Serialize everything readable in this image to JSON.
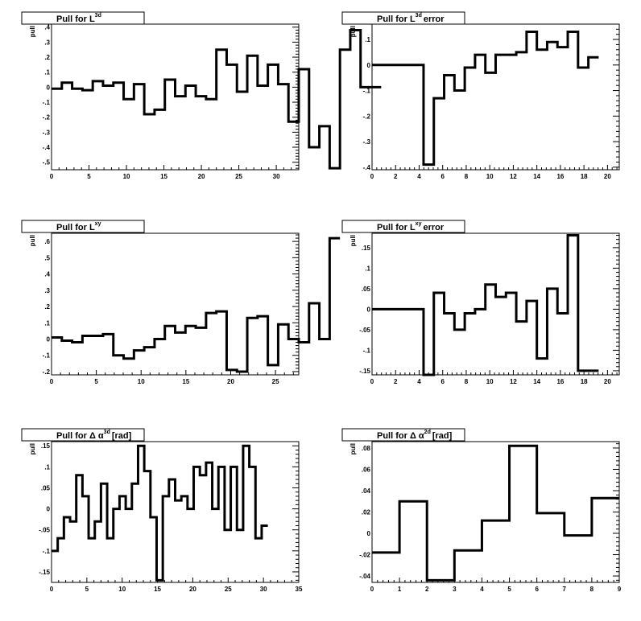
{
  "chart_data": [
    {
      "type": "histogram",
      "title": "Pull for L",
      "title_sup": "3d",
      "title_suffix": "",
      "ylabel": "pull",
      "bin_start": 0,
      "bin_width": 1.375,
      "xlim": [
        0,
        33
      ],
      "ylim": [
        -0.55,
        0.42
      ],
      "xticks": [
        0,
        5,
        10,
        15,
        20,
        25,
        30
      ],
      "yticks": [
        -0.5,
        -0.4,
        -0.3,
        -0.2,
        -0.1,
        0,
        0.1,
        0.2,
        0.3,
        0.4
      ],
      "values": [
        -0.01,
        0.03,
        -0.01,
        -0.02,
        0.04,
        0.01,
        0.03,
        -0.08,
        0.02,
        -0.18,
        -0.15,
        0.05,
        -0.06,
        0.01,
        -0.06,
        -0.08,
        0.25,
        0.15,
        -0.03,
        0.21,
        0.01,
        0.15,
        0.02,
        -0.23,
        0.12,
        -0.4,
        -0.26,
        -0.54,
        0.25,
        0.38,
        0.0,
        0.0
      ]
    },
    {
      "type": "histogram",
      "title": "Pull for L",
      "title_sup": "3d",
      "title_suffix": "error",
      "ylabel": "pull",
      "bin_start": 0,
      "bin_width": 0.875,
      "xlim": [
        0,
        21
      ],
      "ylim": [
        -0.41,
        0.16
      ],
      "xticks": [
        0,
        2,
        4,
        6,
        8,
        10,
        12,
        14,
        16,
        18,
        20
      ],
      "yticks": [
        -0.4,
        -0.3,
        -0.2,
        -0.1,
        0,
        0.1
      ],
      "values": [
        0,
        0,
        0,
        0,
        0,
        -0.39,
        -0.13,
        -0.04,
        -0.1,
        -0.01,
        0.04,
        -0.03,
        0.04,
        0.04,
        0.05,
        0.13,
        0.06,
        0.09,
        0.07,
        0.13,
        -0.01,
        0.03
      ]
    },
    {
      "type": "histogram",
      "title": "Pull for L",
      "title_sup": "xy",
      "title_suffix": "",
      "ylabel": "pull",
      "bin_start": 0,
      "bin_width": 1.15,
      "xlim": [
        0,
        27.6
      ],
      "ylim": [
        -0.22,
        0.65
      ],
      "xticks": [
        0,
        5,
        10,
        15,
        20,
        25
      ],
      "yticks": [
        -0.2,
        -0.1,
        0,
        0.1,
        0.2,
        0.3,
        0.4,
        0.5,
        0.6
      ],
      "values": [
        0.01,
        -0.01,
        -0.02,
        0.02,
        0.02,
        0.03,
        -0.1,
        -0.12,
        -0.07,
        -0.05,
        0.0,
        0.08,
        0.04,
        0.08,
        0.07,
        0.16,
        0.17,
        -0.19,
        -0.2,
        0.13,
        0.14,
        -0.16,
        0.09,
        0.0,
        -0.02,
        0.22,
        0.0,
        0.62
      ]
    },
    {
      "type": "histogram",
      "title": "Pull for L",
      "title_sup": "xy",
      "title_suffix": "error",
      "ylabel": "pull",
      "bin_start": 0,
      "bin_width": 0.875,
      "xlim": [
        0,
        21
      ],
      "ylim": [
        -0.16,
        0.185
      ],
      "xticks": [
        0,
        2,
        4,
        6,
        8,
        10,
        12,
        14,
        16,
        18,
        20
      ],
      "yticks": [
        -0.15,
        -0.1,
        -0.05,
        0,
        0.05,
        0.1,
        0.15
      ],
      "values": [
        0,
        0,
        0,
        0,
        0,
        -0.16,
        0.04,
        -0.01,
        -0.05,
        -0.01,
        0.0,
        0.06,
        0.03,
        0.04,
        -0.03,
        0.02,
        -0.12,
        0.05,
        -0.01,
        0.18,
        -0.15,
        -0.15
      ]
    },
    {
      "type": "histogram",
      "title": "Pull for Δ α",
      "title_sup": "3d",
      "title_suffix": "[rad]",
      "ylabel": "pull",
      "bin_start": 0,
      "bin_width": 0.875,
      "xlim": [
        0,
        35
      ],
      "ylim": [
        -0.175,
        0.16
      ],
      "xticks": [
        0,
        5,
        10,
        15,
        20,
        25,
        30,
        35
      ],
      "yticks": [
        -0.15,
        -0.1,
        -0.05,
        0,
        0.05,
        0.1,
        0.15
      ],
      "values": [
        -0.1,
        -0.07,
        -0.02,
        -0.03,
        0.08,
        0.03,
        -0.07,
        -0.03,
        0.06,
        -0.07,
        0.0,
        0.03,
        0.0,
        0.06,
        0.15,
        0.09,
        -0.02,
        -0.17,
        0.03,
        0.07,
        0.02,
        0.03,
        0.0,
        0.1,
        0.08,
        0.11,
        0.0,
        0.1,
        -0.05,
        0.1,
        -0.05,
        0.15,
        0.1,
        -0.07,
        -0.04
      ]
    },
    {
      "type": "histogram",
      "title": "Pull for Δ α",
      "title_sup": "2d",
      "title_suffix": "[rad]",
      "ylabel": "pull",
      "bin_start": 0,
      "bin_width": 1.0,
      "xlim": [
        0,
        9
      ],
      "ylim": [
        -0.046,
        0.086
      ],
      "xticks": [
        0,
        1,
        2,
        3,
        4,
        5,
        6,
        7,
        8,
        9
      ],
      "yticks": [
        -0.04,
        -0.02,
        0,
        0.02,
        0.04,
        0.06,
        0.08
      ],
      "values": [
        -0.018,
        0.03,
        -0.044,
        -0.016,
        0.012,
        0.082,
        0.019,
        -0.002,
        0.033
      ]
    }
  ]
}
